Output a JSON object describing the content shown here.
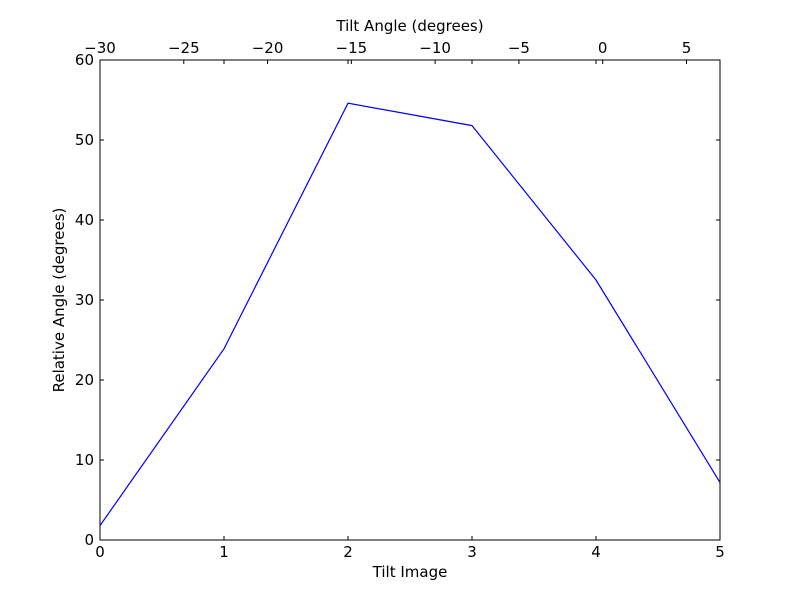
{
  "chart_data": {
    "type": "line",
    "xlabel": "Tilt Image",
    "ylabel": "Relative Angle (degrees)",
    "x2label": "Tilt Angle (degrees)",
    "xlim": [
      0,
      5
    ],
    "ylim": [
      0,
      60
    ],
    "x2lim": [
      -30,
      7
    ],
    "x_ticks": [
      "0",
      "1",
      "2",
      "3",
      "4",
      "5"
    ],
    "y_ticks": [
      "0",
      "10",
      "20",
      "30",
      "40",
      "50",
      "60"
    ],
    "x2_ticks": [
      "−30",
      "−25",
      "−20",
      "−15",
      "−10",
      "−5",
      "0",
      "5"
    ],
    "x_tick_values": [
      0,
      1,
      2,
      3,
      4,
      5
    ],
    "y_tick_values": [
      0,
      10,
      20,
      30,
      40,
      50,
      60
    ],
    "x2_tick_values": [
      -30,
      -25,
      -20,
      -15,
      -10,
      -5,
      0,
      5
    ],
    "grid": false,
    "legend": "none",
    "series": [
      {
        "color": "#0000ff",
        "x": [
          0,
          1,
          2,
          3,
          4,
          5
        ],
        "y": [
          1.8,
          23.9,
          54.6,
          51.8,
          32.5,
          7.2
        ]
      }
    ]
  }
}
